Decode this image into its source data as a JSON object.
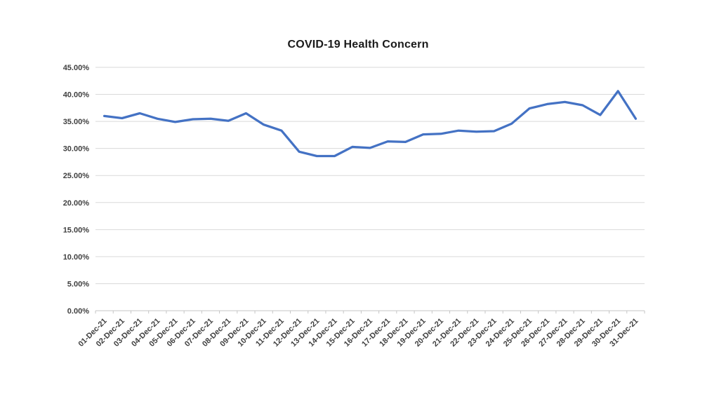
{
  "chart_data": {
    "type": "line",
    "title": "COVID-19 Health Concern",
    "categories": [
      "01-Dec-21",
      "02-Dec-21",
      "03-Dec-21",
      "04-Dec-21",
      "05-Dec-21",
      "06-Dec-21",
      "07-Dec-21",
      "08-Dec-21",
      "09-Dec-21",
      "10-Dec-21",
      "11-Dec-21",
      "12-Dec-21",
      "13-Dec-21",
      "14-Dec-21",
      "15-Dec-21",
      "16-Dec-21",
      "17-Dec-21",
      "18-Dec-21",
      "19-Dec-21",
      "20-Dec-21",
      "21-Dec-21",
      "22-Dec-21",
      "23-Dec-21",
      "24-Dec-21",
      "25-Dec-21",
      "26-Dec-21",
      "27-Dec-21",
      "28-Dec-21",
      "29-Dec-21",
      "30-Dec-21",
      "31-Dec-21"
    ],
    "values": [
      36.0,
      35.6,
      36.5,
      35.5,
      34.9,
      35.4,
      35.5,
      35.1,
      36.5,
      34.4,
      33.3,
      29.4,
      28.6,
      28.6,
      30.3,
      30.1,
      31.3,
      31.2,
      32.6,
      32.7,
      33.3,
      33.1,
      33.2,
      34.6,
      37.4,
      38.2,
      38.6,
      38.0,
      36.2,
      40.6,
      35.5
    ],
    "unit": "%",
    "xlabel": "",
    "ylabel": "",
    "ylim": [
      0,
      45
    ],
    "ytick_step": 5,
    "ytick_labels": [
      "0.00%",
      "5.00%",
      "10.00%",
      "15.00%",
      "20.00%",
      "25.00%",
      "30.00%",
      "35.00%",
      "40.00%",
      "45.00%"
    ],
    "grid": true,
    "legend": false,
    "line_color": "#4472C4",
    "gridline_color": "#d9d9d9",
    "axis_color": "#c6c6c6",
    "axis_label_color": "#3f3f3f",
    "title_color": "#1a1a1a",
    "background_color": "#ffffff"
  }
}
